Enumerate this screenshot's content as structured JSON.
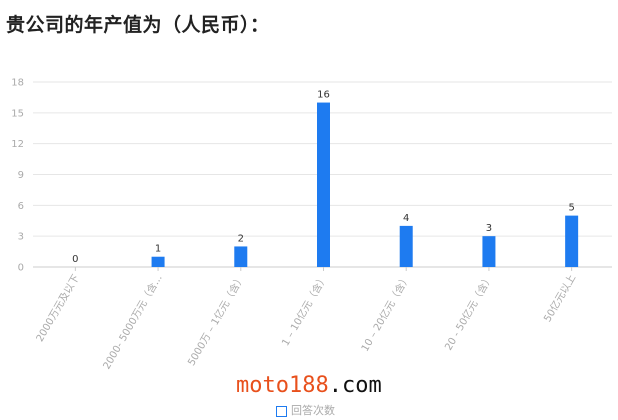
{
  "title": "贵公司的年产值为（人民币）：",
  "watermark": {
    "part1": "moto188",
    "part2": ".com"
  },
  "chart_data": {
    "type": "bar",
    "title": "贵公司的年产值为（人民币）：",
    "categories": [
      "2000万元及以下",
      "2000- 5000万元（含...",
      "5000万 – 1亿元（含）",
      "1 – 10亿元（含）",
      "10 – 20亿元（含）",
      "20 - 50亿元（含）",
      "50亿元以上"
    ],
    "series": [
      {
        "name": "回答次数",
        "values": [
          0,
          1,
          2,
          16,
          4,
          3,
          5
        ],
        "color": "#1e7bf0"
      }
    ],
    "ylim": [
      0,
      18
    ],
    "yticks": [
      0,
      3,
      6,
      9,
      12,
      15,
      18
    ],
    "grid": true,
    "legend": "bottom",
    "xlabel": "",
    "ylabel": ""
  }
}
